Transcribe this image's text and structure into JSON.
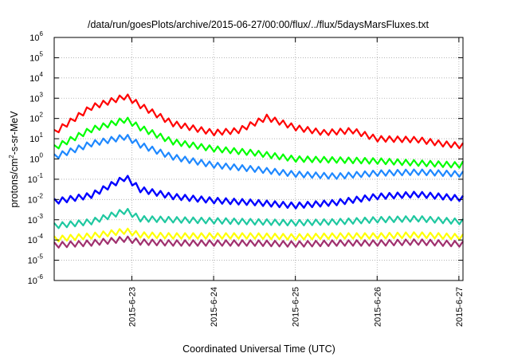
{
  "chart_data": {
    "type": "line",
    "title": "/data/run/goesPlots/archive/2015-06-27/00:00/flux/../flux/5daysMarsFluxes.txt",
    "xlabel": "Coordinated Universal Time (UTC)",
    "ylabel": "protons/cm²-s-sr-MeV",
    "ylabel_parts": {
      "base": "protons/cm",
      "exp": "2",
      "rest": "-s-sr-MeV"
    },
    "yscale": "log",
    "ylim_exp": [
      -6,
      6
    ],
    "y_ticks": [
      {
        "base": "10",
        "exp": "-6"
      },
      {
        "base": "10",
        "exp": "-5"
      },
      {
        "base": "10",
        "exp": "-4"
      },
      {
        "base": "10",
        "exp": "-3"
      },
      {
        "base": "10",
        "exp": "-2"
      },
      {
        "base": "10",
        "exp": "-1"
      },
      {
        "base": "10",
        "exp": "0"
      },
      {
        "base": "10",
        "exp": "1"
      },
      {
        "base": "10",
        "exp": "2"
      },
      {
        "base": "10",
        "exp": "3"
      },
      {
        "base": "10",
        "exp": "4"
      },
      {
        "base": "10",
        "exp": "5"
      },
      {
        "base": "10",
        "exp": "6"
      }
    ],
    "xlim_days": [
      22.05,
      27.05
    ],
    "x_ticks": [
      {
        "day": 23,
        "label": "2015-6-23"
      },
      {
        "day": 24,
        "label": "2015-6-24"
      },
      {
        "day": 25,
        "label": "2015-6-25"
      },
      {
        "day": 26,
        "label": "2015-6-26"
      },
      {
        "day": 27,
        "label": "2015-6-27"
      }
    ],
    "grid": true,
    "series": [
      {
        "color": "#ff0000",
        "lw": 2.2,
        "pts": [
          [
            22.05,
            1.3
          ],
          [
            22.5,
            2.55
          ],
          [
            22.93,
            3.1
          ],
          [
            23.1,
            2.65
          ],
          [
            23.5,
            1.75
          ],
          [
            24,
            1.3
          ],
          [
            24.3,
            1.4
          ],
          [
            24.65,
            2.05
          ],
          [
            25,
            1.55
          ],
          [
            25.35,
            1.3
          ],
          [
            25.7,
            1.4
          ],
          [
            26,
            1.0
          ],
          [
            26.5,
            0.95
          ],
          [
            26.8,
            0.75
          ],
          [
            27.05,
            0.65
          ]
        ]
      },
      {
        "color": "#00ff00",
        "lw": 2.2,
        "pts": [
          [
            22.05,
            0.55
          ],
          [
            22.5,
            1.45
          ],
          [
            22.93,
            1.95
          ],
          [
            23.1,
            1.55
          ],
          [
            23.5,
            0.85
          ],
          [
            24,
            0.5
          ],
          [
            24.5,
            0.3
          ],
          [
            25,
            0.0
          ],
          [
            25.5,
            -0.05
          ],
          [
            26,
            -0.1
          ],
          [
            26.5,
            -0.2
          ],
          [
            27,
            -0.3
          ],
          [
            27.05,
            -0.25
          ]
        ]
      },
      {
        "color": "#1e88ff",
        "lw": 2.2,
        "pts": [
          [
            22.05,
            0.1
          ],
          [
            22.5,
            0.75
          ],
          [
            22.93,
            1.1
          ],
          [
            23.1,
            0.7
          ],
          [
            23.5,
            0.1
          ],
          [
            24,
            -0.3
          ],
          [
            24.5,
            -0.5
          ],
          [
            25,
            -0.75
          ],
          [
            25.5,
            -0.85
          ],
          [
            26,
            -0.7
          ],
          [
            26.5,
            -0.65
          ],
          [
            26.8,
            -0.7
          ],
          [
            27.05,
            -0.75
          ]
        ]
      },
      {
        "color": "#0000ff",
        "lw": 2.4,
        "pts": [
          [
            22.05,
            -2.1
          ],
          [
            22.5,
            -1.8
          ],
          [
            22.93,
            -0.9
          ],
          [
            23.1,
            -1.5
          ],
          [
            23.5,
            -1.85
          ],
          [
            24,
            -2.05
          ],
          [
            24.5,
            -2.15
          ],
          [
            25,
            -2.3
          ],
          [
            25.5,
            -2.15
          ],
          [
            26,
            -1.85
          ],
          [
            26.5,
            -1.75
          ],
          [
            27.05,
            -1.95
          ]
        ]
      },
      {
        "color": "#1ec8a0",
        "lw": 2.2,
        "pts": [
          [
            22.05,
            -3.3
          ],
          [
            22.5,
            -3.1
          ],
          [
            22.93,
            -2.55
          ],
          [
            23.1,
            -2.95
          ],
          [
            23.5,
            -3.0
          ],
          [
            24,
            -3.05
          ],
          [
            24.5,
            -3.1
          ],
          [
            25,
            -3.15
          ],
          [
            25.5,
            -3.1
          ],
          [
            26,
            -3.0
          ],
          [
            26.5,
            -2.95
          ],
          [
            27.05,
            -3.1
          ]
        ]
      },
      {
        "color": "#ffff00",
        "lw": 2.2,
        "pts": [
          [
            22.05,
            -3.95
          ],
          [
            22.5,
            -3.8
          ],
          [
            22.93,
            -3.55
          ],
          [
            23.1,
            -3.75
          ],
          [
            23.5,
            -3.8
          ],
          [
            24,
            -3.8
          ],
          [
            24.5,
            -3.8
          ],
          [
            25,
            -3.85
          ],
          [
            25.5,
            -3.8
          ],
          [
            26,
            -3.8
          ],
          [
            26.5,
            -3.75
          ],
          [
            27.05,
            -3.85
          ]
        ]
      },
      {
        "color": "#a0306e",
        "lw": 2.2,
        "pts": [
          [
            22.05,
            -4.25
          ],
          [
            22.5,
            -4.15
          ],
          [
            22.93,
            -3.95
          ],
          [
            23.1,
            -4.1
          ],
          [
            23.5,
            -4.15
          ],
          [
            24,
            -4.15
          ],
          [
            24.5,
            -4.15
          ],
          [
            25,
            -4.2
          ],
          [
            25.5,
            -4.15
          ],
          [
            26,
            -4.15
          ],
          [
            26.5,
            -4.1
          ],
          [
            27.05,
            -4.2
          ]
        ]
      }
    ]
  }
}
